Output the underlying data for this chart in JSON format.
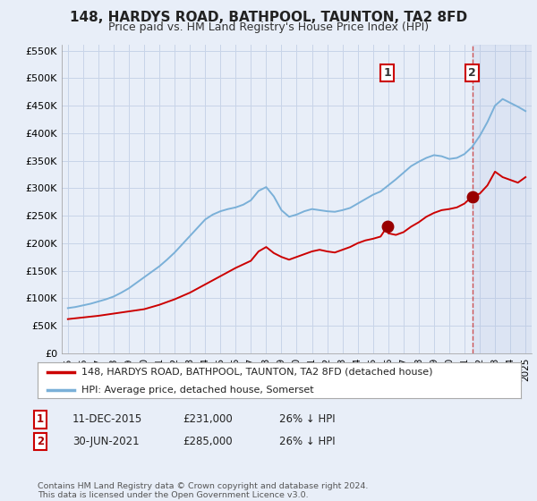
{
  "title": "148, HARDYS ROAD, BATHPOOL, TAUNTON, TA2 8FD",
  "subtitle": "Price paid vs. HM Land Registry's House Price Index (HPI)",
  "legend_label_red": "148, HARDYS ROAD, BATHPOOL, TAUNTON, TA2 8FD (detached house)",
  "legend_label_blue": "HPI: Average price, detached house, Somerset",
  "footnote": "Contains HM Land Registry data © Crown copyright and database right 2024.\nThis data is licensed under the Open Government Licence v3.0.",
  "table_rows": [
    {
      "num": "1",
      "date": "11-DEC-2015",
      "price": "£231,000",
      "change": "26% ↓ HPI"
    },
    {
      "num": "2",
      "date": "30-JUN-2021",
      "price": "£285,000",
      "change": "26% ↓ HPI"
    }
  ],
  "marker1_x": 2015.95,
  "marker1_y": 231000,
  "marker2_x": 2021.5,
  "marker2_y": 285000,
  "hpi_x": [
    1995.0,
    1995.5,
    1996.0,
    1996.5,
    1997.0,
    1997.5,
    1998.0,
    1998.5,
    1999.0,
    1999.5,
    2000.0,
    2000.5,
    2001.0,
    2001.5,
    2002.0,
    2002.5,
    2003.0,
    2003.5,
    2004.0,
    2004.5,
    2005.0,
    2005.5,
    2006.0,
    2006.5,
    2007.0,
    2007.5,
    2008.0,
    2008.5,
    2009.0,
    2009.5,
    2010.0,
    2010.5,
    2011.0,
    2011.5,
    2012.0,
    2012.5,
    2013.0,
    2013.5,
    2014.0,
    2014.5,
    2015.0,
    2015.5,
    2016.0,
    2016.5,
    2017.0,
    2017.5,
    2018.0,
    2018.5,
    2019.0,
    2019.5,
    2020.0,
    2020.5,
    2021.0,
    2021.5,
    2022.0,
    2022.5,
    2023.0,
    2023.5,
    2024.0,
    2024.5,
    2025.0
  ],
  "hpi_y": [
    82000,
    84000,
    87000,
    90000,
    94000,
    98000,
    103000,
    110000,
    118000,
    128000,
    138000,
    148000,
    158000,
    170000,
    183000,
    198000,
    213000,
    228000,
    243000,
    252000,
    258000,
    262000,
    265000,
    270000,
    278000,
    295000,
    302000,
    285000,
    260000,
    248000,
    252000,
    258000,
    262000,
    260000,
    258000,
    257000,
    260000,
    264000,
    272000,
    280000,
    288000,
    294000,
    305000,
    316000,
    328000,
    340000,
    348000,
    355000,
    360000,
    358000,
    353000,
    355000,
    362000,
    375000,
    395000,
    420000,
    450000,
    462000,
    455000,
    448000,
    440000
  ],
  "red_x": [
    1995.0,
    1996.0,
    1997.0,
    1998.0,
    1999.0,
    2000.0,
    2001.0,
    2002.0,
    2003.0,
    2004.0,
    2005.0,
    2006.0,
    2007.0,
    2007.5,
    2008.0,
    2008.5,
    2009.0,
    2009.5,
    2010.0,
    2010.5,
    2011.0,
    2011.5,
    2012.0,
    2012.5,
    2013.0,
    2013.5,
    2014.0,
    2014.5,
    2015.0,
    2015.5,
    2015.95,
    2016.0,
    2016.5,
    2017.0,
    2017.5,
    2018.0,
    2018.5,
    2019.0,
    2019.5,
    2020.0,
    2020.5,
    2021.0,
    2021.5,
    2022.0,
    2022.5,
    2023.0,
    2023.5,
    2024.0,
    2024.5,
    2025.0
  ],
  "red_y": [
    62000,
    65000,
    68000,
    72000,
    76000,
    80000,
    88000,
    98000,
    110000,
    125000,
    140000,
    155000,
    168000,
    185000,
    193000,
    182000,
    175000,
    170000,
    175000,
    180000,
    185000,
    188000,
    185000,
    183000,
    188000,
    193000,
    200000,
    205000,
    208000,
    212000,
    231000,
    218000,
    215000,
    220000,
    230000,
    238000,
    248000,
    255000,
    260000,
    262000,
    265000,
    272000,
    285000,
    290000,
    305000,
    330000,
    320000,
    315000,
    310000,
    320000
  ],
  "ylim_max": 560000,
  "yticks": [
    0,
    50000,
    100000,
    150000,
    200000,
    250000,
    300000,
    350000,
    400000,
    450000,
    500000,
    550000
  ],
  "xlim_min": 1994.6,
  "xlim_max": 2025.4,
  "bg_color": "#e8eef8",
  "plot_bg": "#e8eef8",
  "grid_color": "#c8d4e8",
  "red_line_color": "#cc0000",
  "blue_line_color": "#7ab0d8",
  "marker_fill": "#990000",
  "dashed_color": "#cc4444",
  "title_fontsize": 11,
  "subtitle_fontsize": 9
}
